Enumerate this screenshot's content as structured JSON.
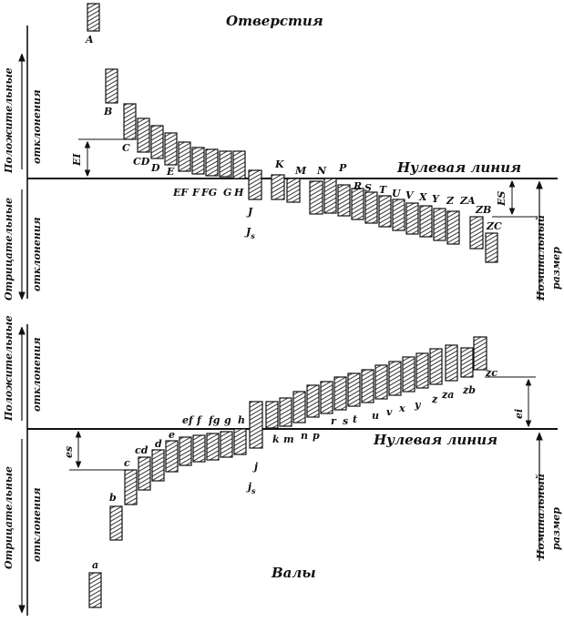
{
  "holes": {
    "title": "Отверстия",
    "zero_line": "Нулевая линия",
    "positive_label": [
      "Положительные",
      "отклонения"
    ],
    "negative_label": [
      "Отрицательные",
      "отклонения"
    ],
    "nominal_label": [
      "Номинальный",
      "размер"
    ],
    "dim_lower": "EI",
    "dim_upper": "ES",
    "letters": {
      "A": "A",
      "B": "B",
      "C": "C",
      "CD": "CD",
      "D": "D",
      "E": "E",
      "EF": "EF",
      "F": "F",
      "FG": "FG",
      "G": "G",
      "H": "H",
      "J": "J",
      "Js": "J",
      "Js_sub": "s",
      "K": "K",
      "M": "M",
      "N": "N",
      "P": "P",
      "R": "R",
      "S": "S",
      "T": "T",
      "U": "U",
      "V": "V",
      "X": "X",
      "Y": "Y",
      "Z": "Z",
      "ZA": "ZA",
      "ZB": "ZB",
      "ZC": "ZC"
    }
  },
  "shafts": {
    "title": "Валы",
    "zero_line": "Нулевая линия",
    "positive_label": [
      "Положительные",
      "отклонения"
    ],
    "negative_label": [
      "Отрицательные",
      "отклонения"
    ],
    "nominal_label": [
      "Номинальный",
      "размер"
    ],
    "dim_upper": "es",
    "dim_lower": "ei",
    "letters": {
      "a": "a",
      "b": "b",
      "c": "c",
      "cd": "cd",
      "d": "d",
      "e": "e",
      "ef": "ef",
      "f": "f",
      "fg": "fg",
      "g": "g",
      "h": "h",
      "j": "j",
      "js": "j",
      "js_sub": "s",
      "k": "k",
      "m": "m",
      "n": "n",
      "p": "p",
      "r": "r",
      "s": "s",
      "t": "t",
      "u": "u",
      "v": "v",
      "x": "x",
      "y": "y",
      "z": "z",
      "za": "za",
      "zb": "zb",
      "zc": "zc"
    }
  }
}
